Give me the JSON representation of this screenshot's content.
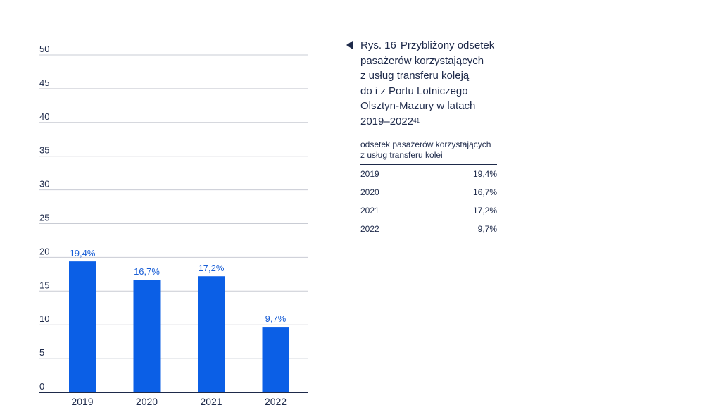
{
  "chart_data": {
    "type": "bar",
    "categories": [
      "2019",
      "2020",
      "2021",
      "2022"
    ],
    "values": [
      19.4,
      16.7,
      17.2,
      9.7
    ],
    "data_labels": [
      "19,4%",
      "16,7%",
      "17,2%",
      "9,7%"
    ],
    "ylim": [
      0,
      50
    ],
    "yticks": [
      "0",
      "5",
      "10",
      "15",
      "20",
      "25",
      "30",
      "35",
      "40",
      "45",
      "50"
    ],
    "grid": true,
    "bar_color": "#0b5fe6",
    "label_color": "#1a5fd6",
    "text_color": "#1e2a4a"
  },
  "caption": {
    "figure_number": "Rys. 16",
    "lines": [
      "Przybliżony odsetek",
      "pasażerów korzystających",
      "z usług transferu koleją",
      "do i z Portu Lotniczego",
      "Olsztyn-Mazury w latach",
      "2019–2022"
    ],
    "footnote_ref": "41"
  },
  "table": {
    "header_line1": "odsetek pasażerów korzystających",
    "header_line2": "z usług transferu kolei",
    "rows": [
      {
        "year": "2019",
        "value": "19,4%"
      },
      {
        "year": "2020",
        "value": "16,7%"
      },
      {
        "year": "2021",
        "value": "17,2%"
      },
      {
        "year": "2022",
        "value": "9,7%"
      }
    ]
  },
  "icons": {
    "caption_marker": "triangle-left-icon"
  }
}
